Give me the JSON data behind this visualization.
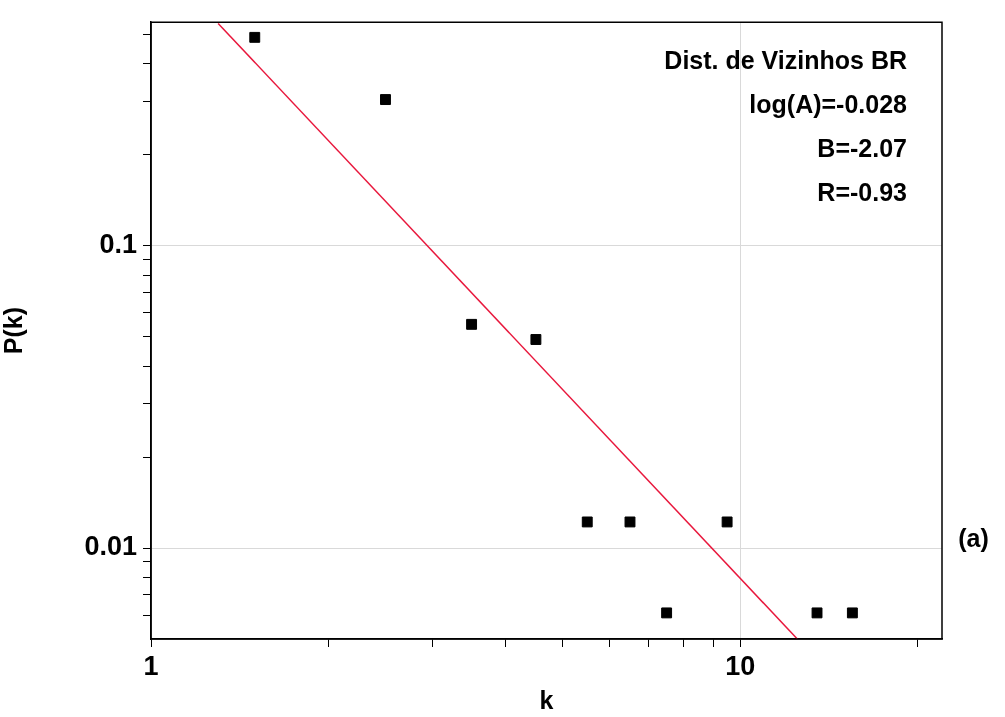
{
  "chart_data": {
    "type": "scatter",
    "xlabel": "k",
    "ylabel": "P(k)",
    "log": "xy",
    "grid": true,
    "legend": false,
    "marker": "square",
    "xlim": [
      1,
      22
    ],
    "ylim": [
      0.005,
      0.55
    ],
    "xticks": [
      1,
      {
        "value": 2,
        "label": null
      },
      {
        "value": 3,
        "label": null
      },
      {
        "value": 4,
        "label": null
      },
      {
        "value": 5,
        "label": null
      },
      {
        "value": 6,
        "label": null
      },
      {
        "value": 7,
        "label": null
      },
      {
        "value": 8,
        "label": null
      },
      {
        "value": 9,
        "label": null
      },
      10,
      {
        "value": 20,
        "label": null
      }
    ],
    "yticks": [
      {
        "value": 0.006,
        "label": null
      },
      {
        "value": 0.007,
        "label": null
      },
      {
        "value": 0.008,
        "label": null
      },
      {
        "value": 0.009,
        "label": null
      },
      0.01,
      {
        "value": 0.02,
        "label": null
      },
      {
        "value": 0.03,
        "label": null
      },
      {
        "value": 0.04,
        "label": null
      },
      {
        "value": 0.05,
        "label": null
      },
      {
        "value": 0.06,
        "label": null
      },
      {
        "value": 0.07,
        "label": null
      },
      {
        "value": 0.08,
        "label": null
      },
      {
        "value": 0.09,
        "label": null
      },
      0.1,
      {
        "value": 0.2,
        "label": null
      },
      {
        "value": 0.3,
        "label": null
      },
      {
        "value": 0.4,
        "label": null
      },
      {
        "value": 0.5,
        "label": null
      }
    ],
    "series": [
      {
        "color": "#000000",
        "x": [
          1.5,
          2.5,
          3.5,
          4.5,
          5.5,
          6.5,
          7.5,
          9.5,
          13.5,
          15.5
        ],
        "values": [
          0.49,
          0.305,
          0.055,
          0.049,
          0.0122,
          0.0122,
          0.0061,
          0.0122,
          0.0061,
          0.0061
        ]
      },
      {
        "type": "line",
        "color": "#e8173c",
        "marker": "none",
        "x": [
          1.3,
          12.5
        ],
        "values": [
          0.545,
          0.005
        ]
      }
    ],
    "annotations": [
      "Dist. de Vizinhos BR",
      "log(A)=-0.028",
      "B=-2.07",
      "R=-0.93",
      "(a)"
    ]
  }
}
